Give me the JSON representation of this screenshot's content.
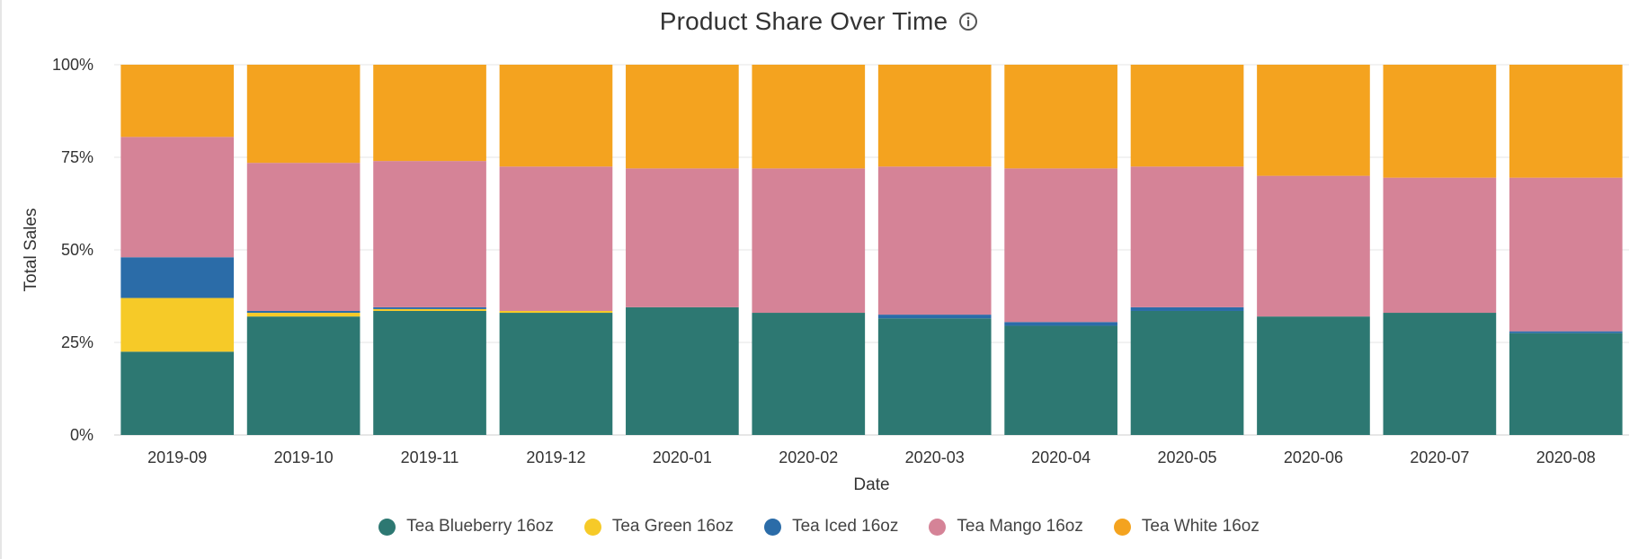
{
  "chart_data": {
    "type": "bar",
    "stacked": true,
    "normalized": true,
    "title": "Product Share Over Time",
    "title_icon": "info-icon",
    "xlabel": "Date",
    "ylabel": "Total Sales",
    "ylim": [
      0,
      100
    ],
    "yticks": [
      "0%",
      "25%",
      "50%",
      "75%",
      "100%"
    ],
    "categories": [
      "2019-09",
      "2019-10",
      "2019-11",
      "2019-12",
      "2020-01",
      "2020-02",
      "2020-03",
      "2020-04",
      "2020-05",
      "2020-06",
      "2020-07",
      "2020-08"
    ],
    "series": [
      {
        "name": "Tea Blueberry 16oz",
        "color": "#2d7872",
        "values": [
          22.5,
          32.0,
          33.5,
          33.0,
          34.5,
          33.0,
          31.5,
          29.5,
          33.5,
          32.0,
          33.0,
          27.5
        ]
      },
      {
        "name": "Tea Green 16oz",
        "color": "#f6ca28",
        "values": [
          14.5,
          1.0,
          0.5,
          0.5,
          0.0,
          0.0,
          0.0,
          0.0,
          0.0,
          0.0,
          0.0,
          0.0
        ]
      },
      {
        "name": "Tea Iced 16oz",
        "color": "#2b6ca8",
        "values": [
          11.0,
          0.5,
          0.5,
          0.0,
          0.0,
          0.0,
          1.0,
          1.0,
          1.0,
          0.0,
          0.0,
          0.5
        ]
      },
      {
        "name": "Tea Mango 16oz",
        "color": "#d58397",
        "values": [
          32.5,
          40.0,
          39.5,
          39.0,
          37.5,
          39.0,
          40.0,
          41.5,
          38.0,
          38.0,
          36.5,
          41.5
        ]
      },
      {
        "name": "Tea White 16oz",
        "color": "#f4a31f",
        "values": [
          19.5,
          26.5,
          26.0,
          27.5,
          28.0,
          28.0,
          27.5,
          28.0,
          27.5,
          30.0,
          30.5,
          30.5
        ]
      }
    ],
    "grid": true,
    "legend_position": "bottom-center"
  }
}
